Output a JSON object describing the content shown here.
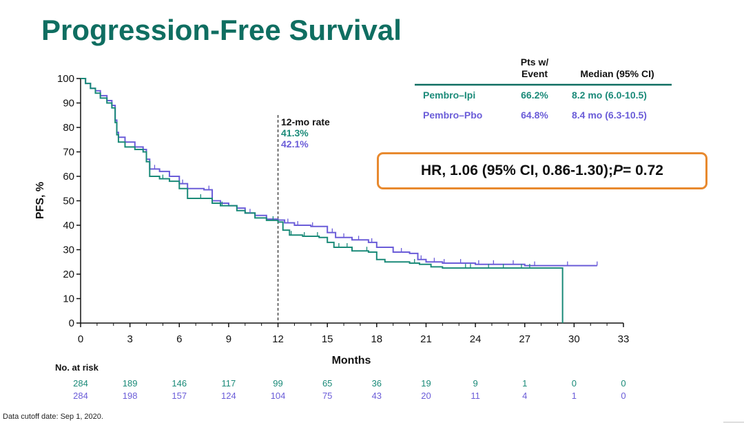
{
  "title": "Progression-Free Survival",
  "footnote": "Data cutoff date: Sep 1, 2020.",
  "legend_table": {
    "col1_header_line1": "Pts w/",
    "col1_header_line2": "Event",
    "col2_header": "Median (95% CI)",
    "rows": [
      {
        "name": "Pembro–Ipi",
        "event_pct": "66.2%",
        "median": "8.2 mo (6.0-10.5)",
        "color": "#1a8a78"
      },
      {
        "name": "Pembro–Pbo",
        "event_pct": "64.8%",
        "median": "8.4 mo (6.3-10.5)",
        "color": "#6a5cd8"
      }
    ]
  },
  "hr_box": {
    "part1": "HR, 1.06 (95% CI, 0.86-1.30); ",
    "p_label": "P",
    "part2": " = 0.72"
  },
  "annotation": {
    "label": "12-mo rate",
    "value1": "41.3%",
    "value2": "42.1%"
  },
  "risk_table": {
    "header": "No. at risk",
    "rows": [
      {
        "values": [
          "284",
          "189",
          "146",
          "117",
          "99",
          "65",
          "36",
          "19",
          "9",
          "1",
          "0",
          "0"
        ],
        "color": "#1a8a78"
      },
      {
        "values": [
          "284",
          "198",
          "157",
          "124",
          "104",
          "75",
          "43",
          "20",
          "11",
          "4",
          "1",
          "0"
        ],
        "color": "#6a5cd8"
      }
    ]
  },
  "colors": {
    "pembro_ipi": "#1a8a78",
    "pembro_pbo": "#6a5cd8",
    "accent_orange": "#e8892e",
    "title_green": "#0f6e61"
  },
  "chart_data": {
    "type": "line",
    "title": "Progression-Free Survival",
    "xlabel": "Months",
    "ylabel": "PFS, %",
    "xlim": [
      0,
      33
    ],
    "ylim": [
      0,
      100
    ],
    "xticks": [
      0,
      3,
      6,
      9,
      12,
      15,
      18,
      21,
      24,
      27,
      30,
      33
    ],
    "yticks": [
      0,
      10,
      20,
      30,
      40,
      50,
      60,
      70,
      80,
      90,
      100
    ],
    "reference_line_x": 12,
    "series": [
      {
        "name": "Pembro–Ipi",
        "step": true,
        "points": [
          [
            0,
            100
          ],
          [
            0.3,
            98
          ],
          [
            0.6,
            96
          ],
          [
            0.9,
            94
          ],
          [
            1.2,
            92
          ],
          [
            1.6,
            90
          ],
          [
            1.9,
            88
          ],
          [
            2.1,
            82
          ],
          [
            2.2,
            77
          ],
          [
            2.3,
            74
          ],
          [
            2.7,
            72
          ],
          [
            3.3,
            71
          ],
          [
            3.8,
            70
          ],
          [
            4.0,
            66
          ],
          [
            4.2,
            60
          ],
          [
            4.8,
            59
          ],
          [
            5.4,
            58
          ],
          [
            6.0,
            55
          ],
          [
            6.5,
            51
          ],
          [
            7.5,
            51
          ],
          [
            8.0,
            49
          ],
          [
            8.5,
            48
          ],
          [
            9.5,
            46
          ],
          [
            10.0,
            45
          ],
          [
            10.6,
            43
          ],
          [
            11.3,
            42
          ],
          [
            12.0,
            41.3
          ],
          [
            12.3,
            38
          ],
          [
            12.7,
            36
          ],
          [
            13.5,
            35.5
          ],
          [
            14.5,
            35
          ],
          [
            15.0,
            33
          ],
          [
            15.4,
            31
          ],
          [
            15.8,
            31
          ],
          [
            16.5,
            29.5
          ],
          [
            17.5,
            29
          ],
          [
            18.0,
            26
          ],
          [
            18.5,
            25
          ],
          [
            20.0,
            24.5
          ],
          [
            20.6,
            24
          ],
          [
            21.3,
            23
          ],
          [
            22.0,
            22.5
          ],
          [
            29.3,
            22.5
          ],
          [
            29.3,
            0
          ]
        ],
        "censor_x": [
          5.0,
          7.3,
          8.6,
          11.7,
          12.8,
          13.6,
          14.4,
          15.7,
          16.2,
          17.4,
          20.3,
          23.4,
          23.7,
          24.8,
          25.7,
          26.8,
          27.3
        ]
      },
      {
        "name": "Pembro–Pbo",
        "step": true,
        "points": [
          [
            0,
            100
          ],
          [
            0.3,
            98
          ],
          [
            0.6,
            96
          ],
          [
            0.9,
            95
          ],
          [
            1.2,
            93
          ],
          [
            1.6,
            91
          ],
          [
            1.9,
            89
          ],
          [
            2.1,
            83
          ],
          [
            2.2,
            78
          ],
          [
            2.3,
            76
          ],
          [
            2.7,
            74
          ],
          [
            3.3,
            72
          ],
          [
            3.8,
            71
          ],
          [
            4.0,
            67
          ],
          [
            4.2,
            63
          ],
          [
            4.8,
            62
          ],
          [
            5.4,
            60
          ],
          [
            6.0,
            57
          ],
          [
            6.5,
            55
          ],
          [
            7.5,
            54.5
          ],
          [
            8.0,
            50
          ],
          [
            8.5,
            49
          ],
          [
            9.0,
            48
          ],
          [
            9.5,
            47
          ],
          [
            10.0,
            45
          ],
          [
            10.6,
            44
          ],
          [
            11.3,
            42.5
          ],
          [
            12.0,
            42.1
          ],
          [
            12.4,
            41
          ],
          [
            13.0,
            40
          ],
          [
            14.0,
            39.5
          ],
          [
            15.0,
            37
          ],
          [
            15.5,
            35
          ],
          [
            16.5,
            34
          ],
          [
            17.5,
            33
          ],
          [
            18.0,
            31
          ],
          [
            19.0,
            29
          ],
          [
            20.0,
            28.5
          ],
          [
            20.5,
            26
          ],
          [
            21.0,
            25
          ],
          [
            22.0,
            24.5
          ],
          [
            24.0,
            24
          ],
          [
            27.0,
            23.5
          ],
          [
            31.4,
            23.5
          ]
        ],
        "censor_x": [
          4.5,
          6.2,
          7.8,
          10.3,
          12.6,
          13.2,
          14.1,
          15.3,
          16.0,
          16.9,
          17.7,
          19.5,
          20.7,
          21.5,
          22.1,
          23.1,
          24.2,
          25.1,
          26.3,
          27.6,
          29.6,
          31.4
        ]
      }
    ]
  }
}
